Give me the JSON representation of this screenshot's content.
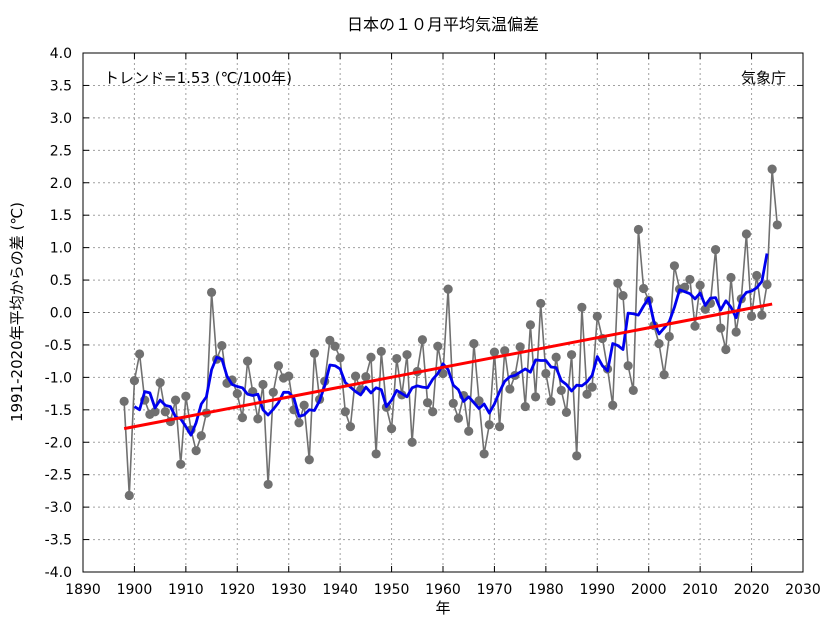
{
  "chart_data": {
    "type": "line",
    "title": "日本の１０月平均気温偏差",
    "xlabel": "年",
    "ylabel": "1991-2020年平均からの差 (℃)",
    "trend_label": "トレンド=1.53 (℃/100年)",
    "source_label": "気象庁",
    "xlim": [
      1890,
      2030
    ],
    "ylim": [
      -4.0,
      4.0
    ],
    "x_ticks": [
      1890,
      1900,
      1910,
      1920,
      1930,
      1940,
      1950,
      1960,
      1970,
      1980,
      1990,
      2000,
      2010,
      2020,
      2030
    ],
    "y_ticks": [
      "4.0",
      "3.5",
      "3.0",
      "2.5",
      "2.0",
      "1.5",
      "1.0",
      "0.5",
      "0.0",
      "-0.5",
      "-1.0",
      "-1.5",
      "-2.0",
      "-2.5",
      "-3.0",
      "-3.5",
      "-4.0"
    ],
    "grid": true,
    "colors": {
      "annual": "#707070",
      "annual_marker": "#707070",
      "moving_average": "#0000ee",
      "trend": "#ff0000"
    },
    "series": [
      {
        "name": "annual",
        "x": [
          1898,
          1899,
          1900,
          1901,
          1902,
          1903,
          1904,
          1905,
          1906,
          1907,
          1908,
          1909,
          1910,
          1911,
          1912,
          1913,
          1914,
          1915,
          1916,
          1917,
          1918,
          1919,
          1920,
          1921,
          1922,
          1923,
          1924,
          1925,
          1926,
          1927,
          1928,
          1929,
          1930,
          1931,
          1932,
          1933,
          1934,
          1935,
          1936,
          1937,
          1938,
          1939,
          1940,
          1941,
          1942,
          1943,
          1944,
          1945,
          1946,
          1947,
          1948,
          1949,
          1950,
          1951,
          1952,
          1953,
          1954,
          1955,
          1956,
          1957,
          1958,
          1959,
          1960,
          1961,
          1962,
          1963,
          1964,
          1965,
          1966,
          1967,
          1968,
          1969,
          1970,
          1971,
          1972,
          1973,
          1974,
          1975,
          1976,
          1977,
          1978,
          1979,
          1980,
          1981,
          1982,
          1983,
          1984,
          1985,
          1986,
          1987,
          1988,
          1989,
          1990,
          1991,
          1992,
          1993,
          1994,
          1995,
          1996,
          1997,
          1998,
          1999,
          2000,
          2001,
          2002,
          2003,
          2004,
          2005,
          2006,
          2007,
          2008,
          2009,
          2010,
          2011,
          2012,
          2013,
          2014,
          2015,
          2016,
          2017,
          2018,
          2019,
          2020,
          2021,
          2022,
          2023,
          2024,
          2025
        ],
        "values": [
          -1.37,
          -2.82,
          -1.05,
          -0.64,
          -1.35,
          -1.57,
          -1.53,
          -1.08,
          -1.53,
          -1.68,
          -1.35,
          -2.34,
          -1.29,
          -1.81,
          -2.13,
          -1.9,
          -1.55,
          0.31,
          -0.72,
          -0.51,
          -1.09,
          -1.04,
          -1.25,
          -1.62,
          -0.75,
          -1.22,
          -1.64,
          -1.11,
          -2.65,
          -1.23,
          -0.82,
          -1.01,
          -0.98,
          -1.5,
          -1.7,
          -1.43,
          -2.27,
          -0.63,
          -1.34,
          -1.06,
          -0.43,
          -0.52,
          -0.7,
          -1.53,
          -1.76,
          -0.98,
          -1.19,
          -0.99,
          -0.69,
          -2.18,
          -0.6,
          -1.46,
          -1.79,
          -0.71,
          -1.27,
          -0.65,
          -2.0,
          -0.91,
          -0.42,
          -1.39,
          -1.53,
          -0.52,
          -0.94,
          0.36,
          -1.4,
          -1.63,
          -1.28,
          -1.83,
          -0.48,
          -1.36,
          -2.18,
          -1.73,
          -0.61,
          -1.76,
          -0.59,
          -1.18,
          -0.97,
          -0.53,
          -1.45,
          -0.19,
          -1.3,
          0.14,
          -0.94,
          -1.37,
          -0.69,
          -1.2,
          -1.54,
          -0.65,
          -2.21,
          0.08,
          -1.26,
          -1.15,
          -0.06,
          -0.4,
          -0.87,
          -1.43,
          0.45,
          0.26,
          -0.82,
          -1.2,
          1.28,
          0.37,
          0.19,
          -0.2,
          -0.48,
          -0.96,
          -0.37,
          0.72,
          0.36,
          0.39,
          0.51,
          -0.21,
          0.42,
          0.05,
          0.14,
          0.97,
          -0.24,
          -0.57,
          0.54,
          -0.3,
          0.21,
          1.21,
          -0.06,
          0.57,
          -0.04,
          0.43,
          2.21,
          1.35
        ]
      },
      {
        "name": "moving_average",
        "x": [
          1900,
          1901,
          1902,
          1903,
          1904,
          1905,
          1906,
          1907,
          1908,
          1909,
          1910,
          1911,
          1912,
          1913,
          1914,
          1915,
          1916,
          1917,
          1918,
          1919,
          1920,
          1921,
          1922,
          1923,
          1924,
          1925,
          1926,
          1927,
          1928,
          1929,
          1930,
          1931,
          1932,
          1933,
          1934,
          1935,
          1936,
          1937,
          1938,
          1939,
          1940,
          1941,
          1942,
          1943,
          1944,
          1945,
          1946,
          1947,
          1948,
          1949,
          1950,
          1951,
          1952,
          1953,
          1954,
          1955,
          1956,
          1957,
          1958,
          1959,
          1960,
          1961,
          1962,
          1963,
          1964,
          1965,
          1966,
          1967,
          1968,
          1969,
          1970,
          1971,
          1972,
          1973,
          1974,
          1975,
          1976,
          1977,
          1978,
          1979,
          1980,
          1981,
          1982,
          1983,
          1984,
          1985,
          1986,
          1987,
          1988,
          1989,
          1990,
          1991,
          1992,
          1993,
          1994,
          1995,
          1996,
          1997,
          1998,
          1999,
          2000,
          2001,
          2002,
          2003,
          2004,
          2005,
          2006,
          2007,
          2008,
          2009,
          2010,
          2011,
          2012,
          2013,
          2014,
          2015,
          2016,
          2017,
          2018,
          2019,
          2020,
          2021,
          2022,
          2023
        ],
        "values": [
          -1.45,
          -1.5,
          -1.22,
          -1.24,
          -1.47,
          -1.35,
          -1.43,
          -1.45,
          -1.61,
          -1.64,
          -1.76,
          -1.89,
          -1.7,
          -1.41,
          -1.3,
          -0.88,
          -0.69,
          -0.72,
          -0.98,
          -1.11,
          -1.14,
          -1.16,
          -1.26,
          -1.28,
          -1.26,
          -1.5,
          -1.58,
          -1.49,
          -1.39,
          -1.23,
          -1.23,
          -1.32,
          -1.6,
          -1.58,
          -1.5,
          -1.51,
          -1.36,
          -1.13,
          -0.81,
          -0.82,
          -0.87,
          -1.08,
          -1.15,
          -1.22,
          -1.27,
          -1.15,
          -1.24,
          -1.16,
          -1.19,
          -1.45,
          -1.35,
          -1.2,
          -1.25,
          -1.3,
          -1.16,
          -1.13,
          -1.15,
          -1.16,
          -1.03,
          -0.94,
          -0.79,
          -0.88,
          -1.12,
          -1.19,
          -1.37,
          -1.3,
          -1.39,
          -1.48,
          -1.41,
          -1.55,
          -1.41,
          -1.22,
          -1.06,
          -0.99,
          -0.97,
          -0.92,
          -0.87,
          -0.92,
          -0.73,
          -0.74,
          -0.74,
          -0.84,
          -0.85,
          -1.05,
          -1.11,
          -1.21,
          -1.12,
          -1.13,
          -1.07,
          -0.97,
          -0.68,
          -0.82,
          -0.9,
          -0.48,
          -0.51,
          -0.57,
          -0.01,
          -0.02,
          -0.04,
          0.1,
          0.22,
          -0.14,
          -0.33,
          -0.24,
          -0.14,
          0.08,
          0.35,
          0.32,
          0.29,
          0.21,
          0.3,
          0.11,
          0.22,
          0.23,
          0.04,
          0.18,
          0.08,
          -0.08,
          0.21,
          0.31,
          0.33,
          0.38,
          0.48,
          0.91
        ]
      }
    ],
    "trend_line": {
      "x": [
        1898,
        2024
      ],
      "values": [
        -1.79,
        0.13
      ]
    }
  }
}
